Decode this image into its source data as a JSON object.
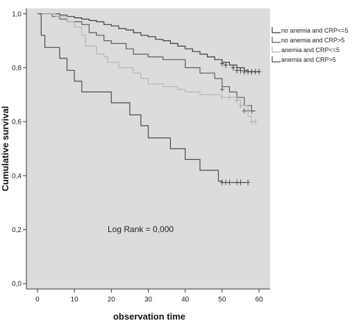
{
  "chart_data": {
    "type": "line",
    "subtype": "kaplan-meier-step",
    "xlabel": "observation time",
    "ylabel": "Cumulative survival",
    "xlim": [
      -3,
      63
    ],
    "ylim": [
      -0.02,
      1.02
    ],
    "xticks": [
      0,
      10,
      20,
      30,
      40,
      50,
      60
    ],
    "yticks": [
      0.0,
      0.2,
      0.4,
      0.6,
      0.8,
      1.0
    ],
    "xtick_labels": [
      "0",
      "10",
      "20",
      "30",
      "40",
      "50",
      "60"
    ],
    "ytick_labels": [
      "0,0",
      "0,2",
      "0,4",
      "0,6",
      "0,8",
      "1,0"
    ],
    "grid": false,
    "legend_position": "right, outside top",
    "annotation": "Log Rank = 0,000",
    "colors": {
      "plot_background": "#dcdcdc",
      "page_background": "#ffffff"
    },
    "series": [
      {
        "name": "no anemia and CRP<=5",
        "color": "#3a3a3a",
        "steps": [
          [
            0,
            1.0
          ],
          [
            6,
            0.995
          ],
          [
            8,
            0.99
          ],
          [
            10,
            0.985
          ],
          [
            12,
            0.98
          ],
          [
            14,
            0.975
          ],
          [
            16,
            0.97
          ],
          [
            18,
            0.96
          ],
          [
            20,
            0.955
          ],
          [
            22,
            0.945
          ],
          [
            24,
            0.94
          ],
          [
            26,
            0.93
          ],
          [
            28,
            0.92
          ],
          [
            30,
            0.915
          ],
          [
            32,
            0.905
          ],
          [
            34,
            0.9
          ],
          [
            36,
            0.89
          ],
          [
            38,
            0.88
          ],
          [
            40,
            0.87
          ],
          [
            42,
            0.86
          ],
          [
            44,
            0.85
          ],
          [
            46,
            0.84
          ],
          [
            48,
            0.83
          ],
          [
            50,
            0.82
          ],
          [
            52,
            0.81
          ],
          [
            54,
            0.8
          ],
          [
            56,
            0.79
          ],
          [
            57,
            0.785
          ],
          [
            60,
            0.785
          ]
        ],
        "censored": [
          [
            50,
            0.815
          ],
          [
            51,
            0.81
          ],
          [
            53,
            0.8
          ],
          [
            54,
            0.79
          ],
          [
            55,
            0.79
          ],
          [
            56,
            0.785
          ],
          [
            57,
            0.785
          ],
          [
            58,
            0.785
          ],
          [
            59,
            0.785
          ],
          [
            60,
            0.785
          ]
        ]
      },
      {
        "name": "no anemia and CRP>5",
        "color": "#5a5a5a",
        "steps": [
          [
            0,
            1.0
          ],
          [
            4,
            0.99
          ],
          [
            6,
            0.98
          ],
          [
            8,
            0.97
          ],
          [
            12,
            0.96
          ],
          [
            14,
            0.93
          ],
          [
            16,
            0.92
          ],
          [
            18,
            0.9
          ],
          [
            20,
            0.89
          ],
          [
            24,
            0.87
          ],
          [
            26,
            0.85
          ],
          [
            30,
            0.84
          ],
          [
            34,
            0.83
          ],
          [
            40,
            0.8
          ],
          [
            44,
            0.78
          ],
          [
            48,
            0.76
          ],
          [
            50,
            0.73
          ],
          [
            52,
            0.71
          ],
          [
            54,
            0.69
          ],
          [
            56,
            0.66
          ],
          [
            58,
            0.64
          ],
          [
            59,
            0.64
          ]
        ],
        "censored": [
          [
            50,
            0.72
          ],
          [
            54,
            0.68
          ],
          [
            55,
            0.66
          ],
          [
            56,
            0.64
          ],
          [
            57,
            0.64
          ],
          [
            58,
            0.64
          ]
        ]
      },
      {
        "name": "anemia and CRP<=5",
        "color": "#b4b4b4",
        "steps": [
          [
            0,
            1.0
          ],
          [
            5,
            0.99
          ],
          [
            8,
            0.97
          ],
          [
            10,
            0.95
          ],
          [
            12,
            0.92
          ],
          [
            13,
            0.88
          ],
          [
            16,
            0.85
          ],
          [
            18,
            0.84
          ],
          [
            19,
            0.82
          ],
          [
            22,
            0.8
          ],
          [
            26,
            0.78
          ],
          [
            28,
            0.76
          ],
          [
            30,
            0.74
          ],
          [
            34,
            0.73
          ],
          [
            38,
            0.72
          ],
          [
            40,
            0.71
          ],
          [
            44,
            0.7
          ],
          [
            50,
            0.69
          ],
          [
            54,
            0.68
          ],
          [
            55,
            0.66
          ],
          [
            57,
            0.62
          ],
          [
            58,
            0.6
          ],
          [
            59,
            0.6
          ]
        ],
        "censored": [
          [
            50,
            0.69
          ],
          [
            52,
            0.69
          ],
          [
            54,
            0.68
          ],
          [
            55,
            0.66
          ],
          [
            58,
            0.6
          ],
          [
            59,
            0.6
          ]
        ]
      },
      {
        "name": "anemia and CRP>5",
        "color": "#4a4a4a",
        "steps": [
          [
            0,
            1.0
          ],
          [
            1,
            0.92
          ],
          [
            2,
            0.875
          ],
          [
            6,
            0.835
          ],
          [
            8,
            0.79
          ],
          [
            10,
            0.75
          ],
          [
            12,
            0.71
          ],
          [
            20,
            0.67
          ],
          [
            25,
            0.625
          ],
          [
            28,
            0.585
          ],
          [
            30,
            0.54
          ],
          [
            36,
            0.5
          ],
          [
            40,
            0.46
          ],
          [
            44,
            0.42
          ],
          [
            49,
            0.38
          ],
          [
            50,
            0.375
          ],
          [
            57,
            0.375
          ]
        ],
        "censored": [
          [
            50,
            0.375
          ],
          [
            51,
            0.375
          ],
          [
            52,
            0.375
          ],
          [
            54,
            0.375
          ],
          [
            55,
            0.375
          ],
          [
            57,
            0.375
          ]
        ]
      }
    ]
  }
}
